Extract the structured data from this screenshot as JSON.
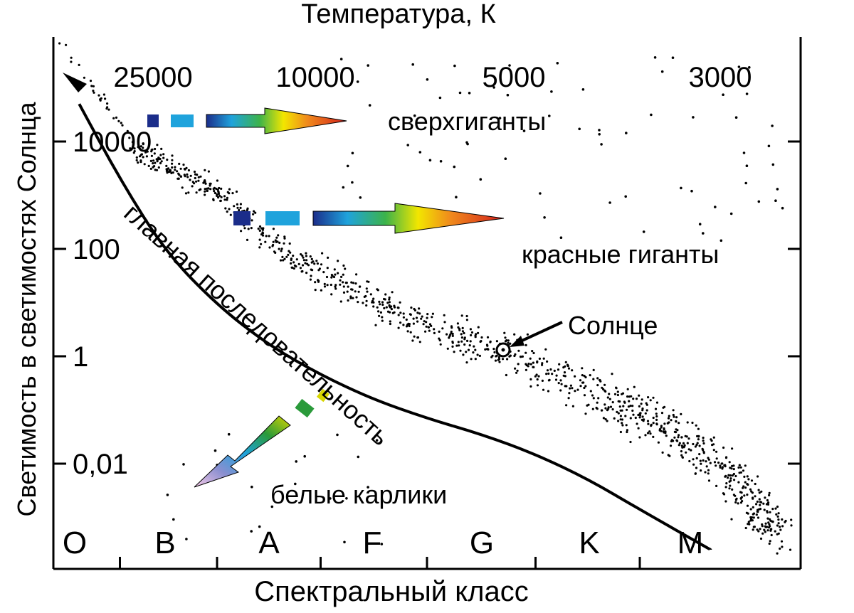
{
  "chart_data": {
    "type": "scatter",
    "title": "",
    "xlabel_top": "Температура, К",
    "xlabel_bottom": "Спектральный класс",
    "ylabel": "Светимость в светимостях Солнца",
    "y_scale": "log",
    "ylim": [
      0.001,
      100000
    ],
    "y_ticks": [
      {
        "label": "10000",
        "value": 10000
      },
      {
        "label": "100",
        "value": 100
      },
      {
        "label": "1",
        "value": 1
      },
      {
        "label": "0,01",
        "value": 0.01
      }
    ],
    "temperature_ticks": [
      {
        "label": "25000",
        "value": 25000
      },
      {
        "label": "10000",
        "value": 10000
      },
      {
        "label": "5000",
        "value": 5000
      },
      {
        "label": "3000",
        "value": 3000
      }
    ],
    "spectral_classes": [
      "O",
      "B",
      "A",
      "F",
      "G",
      "K",
      "M"
    ],
    "grid": false,
    "legend": "none",
    "annotations": [
      {
        "id": "supergiants",
        "text": "сверхгиганты"
      },
      {
        "id": "red-giants",
        "text": "красные гиганты"
      },
      {
        "id": "main-sequence",
        "text": "главная последовательность"
      },
      {
        "id": "sun",
        "text": "Солнце"
      },
      {
        "id": "white-dwarfs",
        "text": "белые карлики"
      }
    ],
    "main_sequence_curve": [
      {
        "class_pos": 0.05,
        "luminosity": 50000
      },
      {
        "class_pos": 0.5,
        "luminosity": 2000
      },
      {
        "class_pos": 1.0,
        "luminosity": 90
      },
      {
        "class_pos": 1.5,
        "luminosity": 9
      },
      {
        "class_pos": 2.0,
        "luminosity": 1.6
      },
      {
        "class_pos": 2.5,
        "luminosity": 0.45
      },
      {
        "class_pos": 3.0,
        "luminosity": 0.16
      },
      {
        "class_pos": 3.5,
        "luminosity": 0.07
      },
      {
        "class_pos": 4.0,
        "luminosity": 0.035
      },
      {
        "class_pos": 4.5,
        "luminosity": 0.015
      },
      {
        "class_pos": 5.0,
        "luminosity": 0.005
      },
      {
        "class_pos": 5.5,
        "luminosity": 0.0014
      },
      {
        "class_pos": 6.2,
        "luminosity": 0.00025
      }
    ],
    "sun_point": {
      "class_pos": 4.2,
      "luminosity": 1
    }
  },
  "colors": {
    "ink": "#000000",
    "arrow_gradient": [
      "#1b2d8a",
      "#1fa3dc",
      "#3cb34a",
      "#f2e600",
      "#f08a1c",
      "#d4201c"
    ],
    "dwarf_gradient": [
      "#d8d600",
      "#2a9a3a",
      "#1fa3dc",
      "#8a8fd0",
      "#f6c8e6"
    ]
  }
}
